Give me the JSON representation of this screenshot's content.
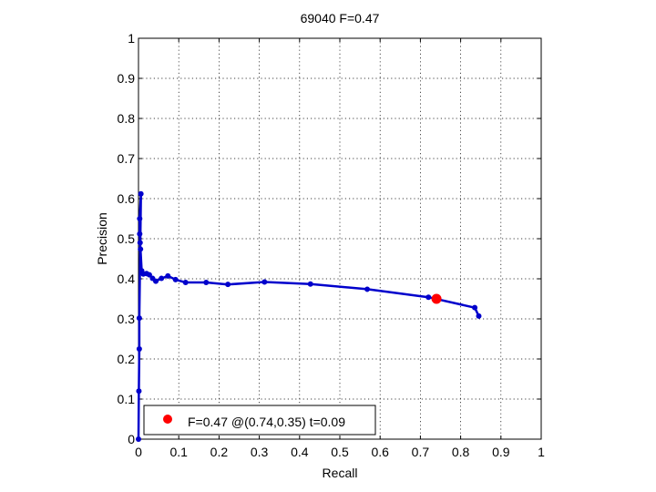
{
  "chart_data": {
    "type": "line",
    "title": "69040 F=0.47",
    "xlabel": "Recall",
    "ylabel": "Precision",
    "xlim": [
      0,
      1
    ],
    "ylim": [
      0,
      1
    ],
    "xticks": [
      0,
      0.1,
      0.2,
      0.3,
      0.4,
      0.5,
      0.6,
      0.7,
      0.8,
      0.9,
      1
    ],
    "yticks": [
      0,
      0.1,
      0.2,
      0.3,
      0.4,
      0.5,
      0.6,
      0.7,
      0.8,
      0.9,
      1
    ],
    "xtick_labels": [
      "0",
      "0.1",
      "0.2",
      "0.3",
      "0.4",
      "0.5",
      "0.6",
      "0.7",
      "0.8",
      "0.9",
      "1"
    ],
    "ytick_labels": [
      "0",
      "0.1",
      "0.2",
      "0.3",
      "0.4",
      "0.5",
      "0.6",
      "0.7",
      "0.8",
      "0.9",
      "1"
    ],
    "grid": true,
    "legend_position": "bottom-left",
    "series": [
      {
        "color": "#0000cc",
        "marker": "dot",
        "points": [
          [
            0.845,
            0.307
          ],
          [
            0.835,
            0.328
          ],
          [
            0.72,
            0.354
          ],
          [
            0.568,
            0.374
          ],
          [
            0.427,
            0.387
          ],
          [
            0.313,
            0.392
          ],
          [
            0.222,
            0.386
          ],
          [
            0.168,
            0.391
          ],
          [
            0.117,
            0.391
          ],
          [
            0.092,
            0.398
          ],
          [
            0.073,
            0.407
          ],
          [
            0.057,
            0.401
          ],
          [
            0.043,
            0.394
          ],
          [
            0.035,
            0.401
          ],
          [
            0.027,
            0.41
          ],
          [
            0.02,
            0.413
          ],
          [
            0.012,
            0.412
          ],
          [
            0.008,
            0.42
          ],
          [
            0.005,
            0.474
          ],
          [
            0.004,
            0.49
          ],
          [
            0.003,
            0.512
          ],
          [
            0.003,
            0.55
          ],
          [
            0.006,
            0.612
          ],
          [
            0.002,
            0.302
          ],
          [
            0.002,
            0.225
          ],
          [
            0.001,
            0.12
          ],
          [
            0.0,
            0.0
          ]
        ]
      },
      {
        "color": "#ff0000",
        "marker": "big-dot",
        "points": [
          [
            0.74,
            0.35
          ]
        ]
      }
    ],
    "legend": {
      "entries": [
        {
          "label": "F=0.47 @(0.74,0.35) t=0.09",
          "color": "#ff0000"
        }
      ]
    }
  }
}
